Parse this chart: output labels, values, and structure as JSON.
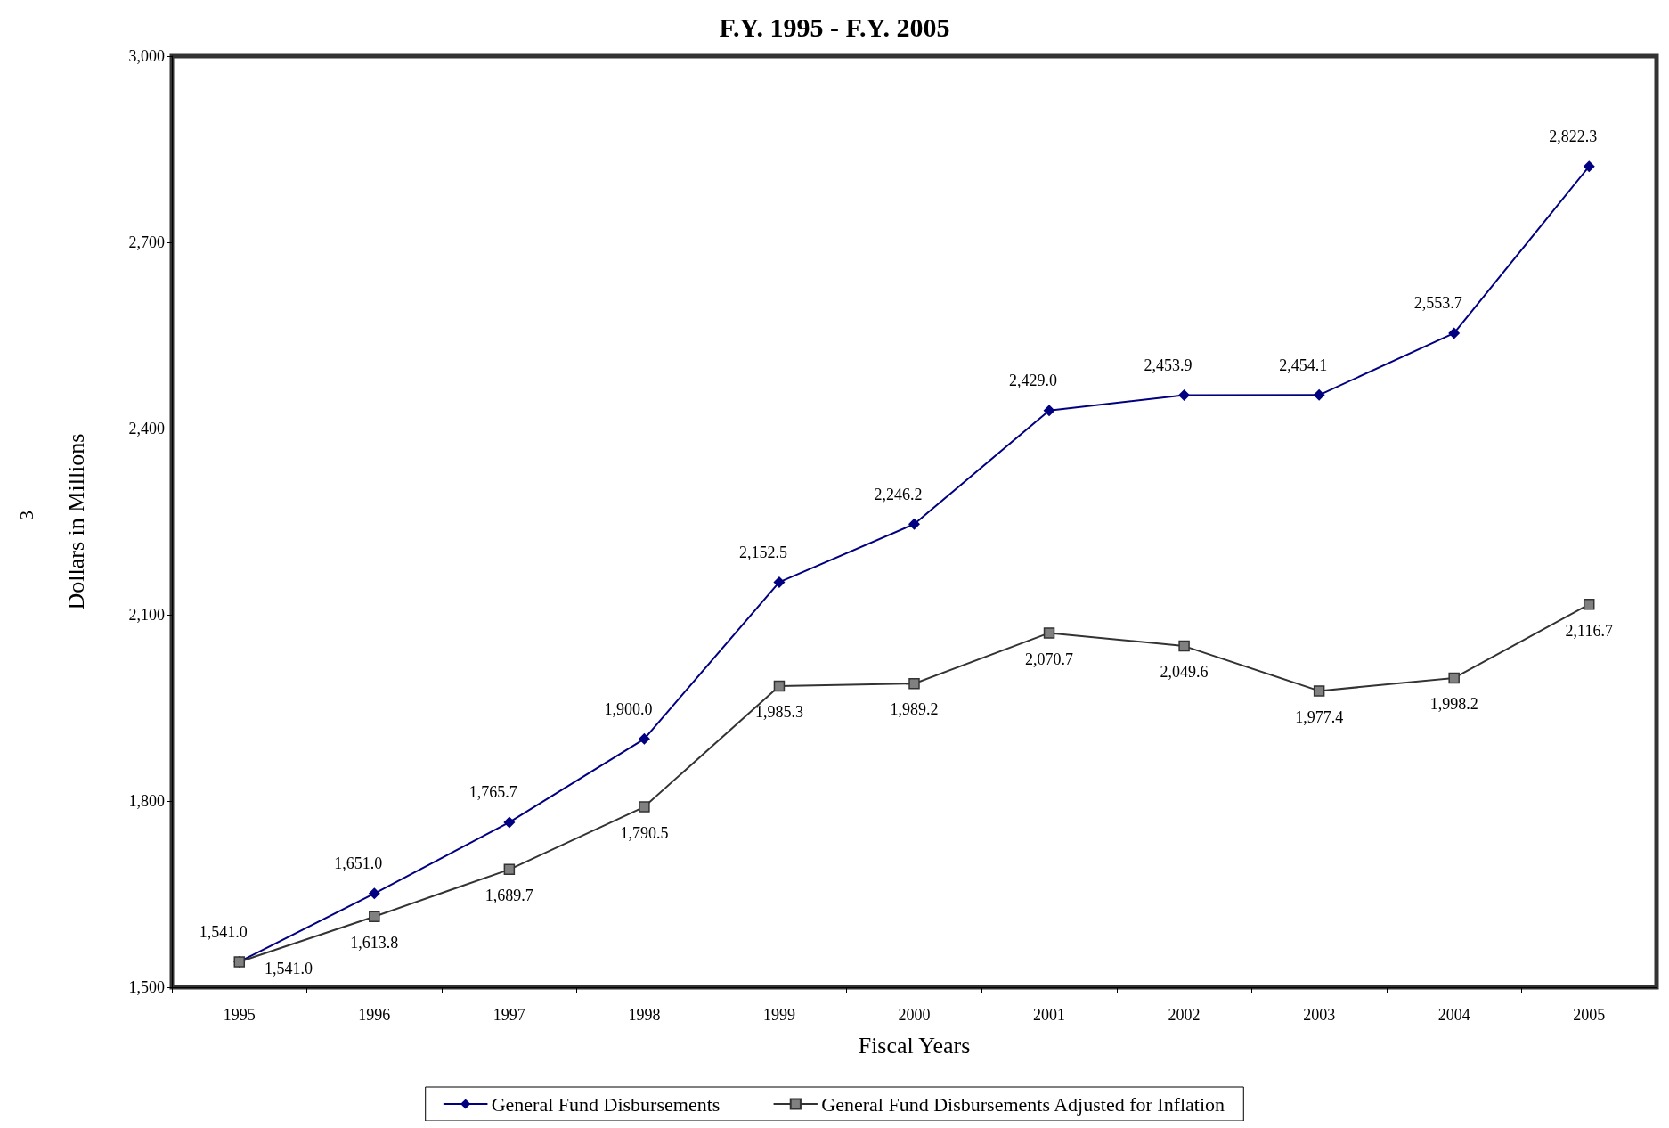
{
  "chart_data": {
    "type": "line",
    "title": "F.Y. 1995 - F.Y. 2005",
    "xlabel": "Fiscal Years",
    "ylabel": "Dollars in Millions",
    "annotations": [
      "3"
    ],
    "categories": [
      "1995",
      "1996",
      "1997",
      "1998",
      "1999",
      "2000",
      "2001",
      "2002",
      "2003",
      "2004",
      "2005"
    ],
    "series": [
      {
        "name": "General Fund Disbursements",
        "color": "#000080",
        "marker": "diamond",
        "values": [
          1541.0,
          1651.0,
          1765.7,
          1900.0,
          2152.5,
          2246.2,
          2429.0,
          2453.9,
          2454.1,
          2553.7,
          2822.3
        ],
        "value_labels": [
          "1,541.0",
          "1,651.0",
          "1,765.7",
          "1,900.0",
          "2,152.5",
          "2,246.2",
          "2,429.0",
          "2,453.9",
          "2,454.1",
          "2,553.7",
          "2,822.3"
        ]
      },
      {
        "name": "General Fund Disbursements Adjusted for Inflation",
        "color": "#333333",
        "marker": "square",
        "values": [
          1541.0,
          1613.8,
          1689.7,
          1790.5,
          1985.3,
          1989.2,
          2070.7,
          2049.6,
          1977.4,
          1998.2,
          2116.7
        ],
        "value_labels": [
          "1,541.0",
          "1,613.8",
          "1,689.7",
          "1,790.5",
          "1,985.3",
          "1,989.2",
          "2,070.7",
          "2,049.6",
          "1,977.4",
          "1,998.2",
          "2,116.7"
        ]
      }
    ],
    "ylim": [
      1500,
      3000
    ],
    "yticks": [
      {
        "value": 1500,
        "label": "1,500"
      },
      {
        "value": 1800,
        "label": "1,800"
      },
      {
        "value": 2100,
        "label": "2,100"
      },
      {
        "value": 2400,
        "label": "2,400"
      },
      {
        "value": 2700,
        "label": "2,700"
      },
      {
        "value": 3000,
        "label": "3,000"
      }
    ],
    "grid": false,
    "legend": "bottom",
    "line_style": "solid"
  }
}
